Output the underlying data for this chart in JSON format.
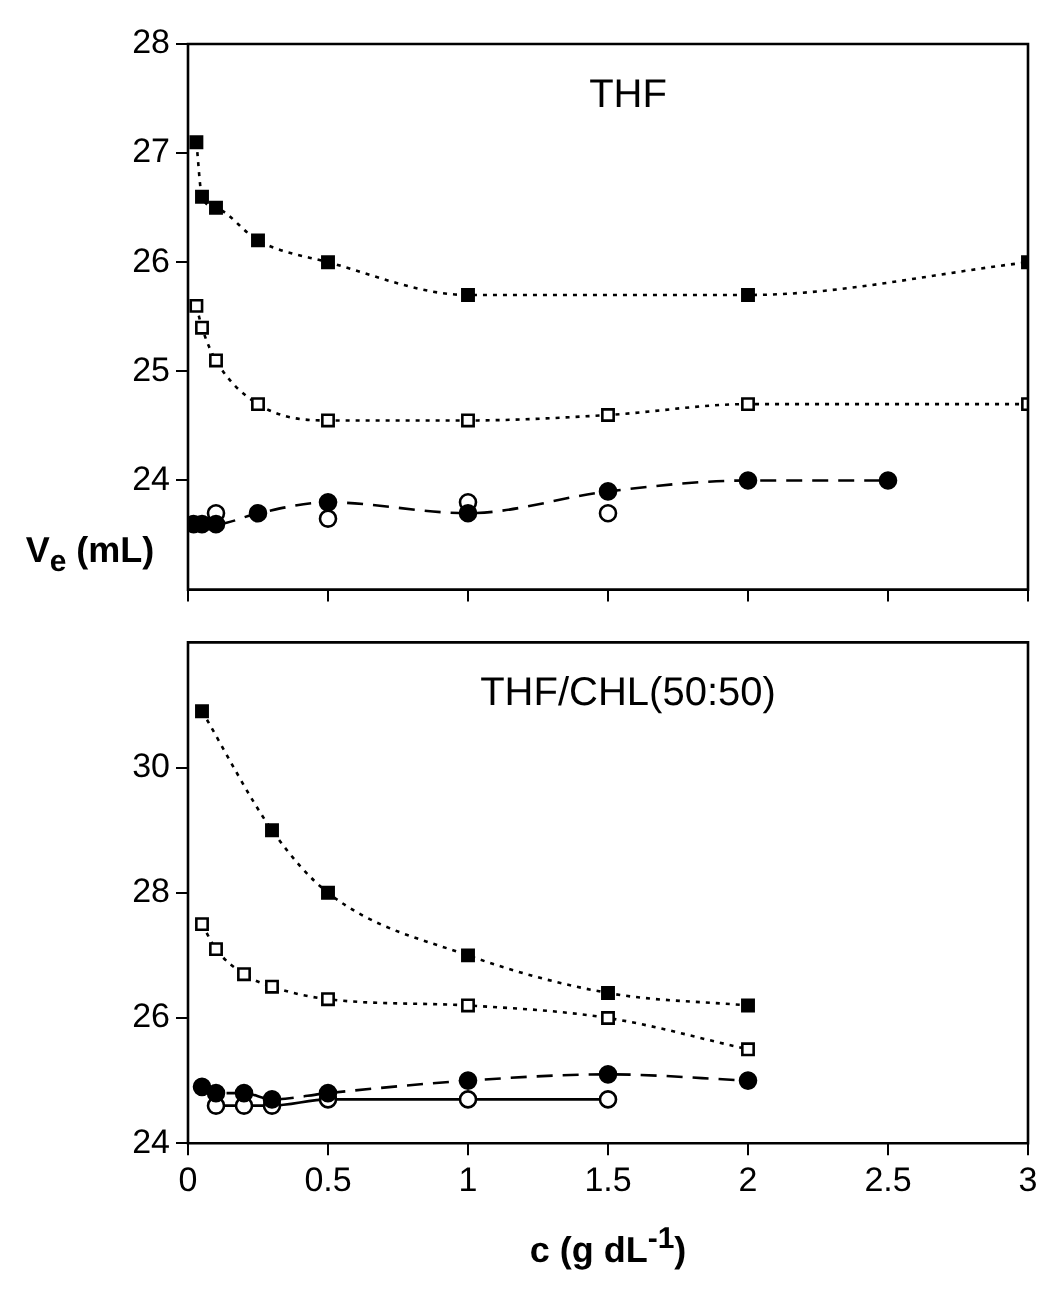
{
  "chart_data": [
    {
      "type": "line",
      "title": "THF",
      "ylabel": "V$_{e}$ (mL)",
      "xlim": [
        0,
        3
      ],
      "xticks": [
        0,
        0.5,
        1,
        1.5,
        2,
        2.5,
        3
      ],
      "ylim": [
        23,
        28
      ],
      "yticks": [
        24,
        25,
        26,
        27,
        28
      ],
      "tick_labels": "y",
      "grid": false,
      "legend": false,
      "series": [
        {
          "type": "line",
          "color": "#000000",
          "marker": "square",
          "line_style": "dotted",
          "x": [
            0.03,
            0.05,
            0.1,
            0.25,
            0.5,
            1,
            2,
            3
          ],
          "values": [
            27.1,
            26.6,
            26.5,
            26.2,
            26.0,
            25.7,
            25.7,
            26.0
          ]
        },
        {
          "type": "line",
          "color": "#ffffff",
          "marker": "square",
          "line_style": "dotted",
          "x": [
            0.03,
            0.05,
            0.1,
            0.25,
            0.5,
            1,
            1.5,
            2,
            3
          ],
          "values": [
            25.6,
            25.4,
            25.1,
            24.7,
            24.55,
            24.55,
            24.6,
            24.7,
            24.7
          ]
        },
        {
          "type": "line",
          "color": "#000000",
          "marker": "circle",
          "line_style": "dashed",
          "x": [
            0.02,
            0.05,
            0.1,
            0.25,
            0.5,
            1,
            1.5,
            2,
            2.5
          ],
          "values": [
            23.6,
            23.6,
            23.6,
            23.7,
            23.8,
            23.7,
            23.9,
            24.0,
            24.0
          ]
        },
        {
          "type": "scatter",
          "color": "#ffffff",
          "marker": "circle",
          "x": [
            0.1,
            0.5,
            1,
            1.5
          ],
          "values": [
            23.7,
            23.65,
            23.8,
            23.7
          ]
        }
      ]
    },
    {
      "type": "line",
      "title": "THF/CHL(50:50)",
      "xlabel": "c (g dL$^{-1}$)",
      "xlim": [
        0,
        3
      ],
      "xticks": [
        0,
        0.5,
        1,
        1.5,
        2,
        2.5,
        3
      ],
      "ylim": [
        24,
        32
      ],
      "yticks": [
        24,
        26,
        28,
        30
      ],
      "grid": false,
      "legend": false,
      "series": [
        {
          "type": "line",
          "color": "#000000",
          "marker": "square",
          "line_style": "dotted",
          "x": [
            0.05,
            0.3,
            0.5,
            1,
            1.5,
            2
          ],
          "values": [
            30.9,
            29.0,
            28.0,
            27.0,
            26.4,
            26.2
          ]
        },
        {
          "type": "line",
          "color": "#ffffff",
          "marker": "square",
          "line_style": "dotted",
          "x": [
            0.05,
            0.1,
            0.2,
            0.3,
            0.5,
            1,
            1.5,
            2
          ],
          "values": [
            27.5,
            27.1,
            26.7,
            26.5,
            26.3,
            26.2,
            26.0,
            25.5
          ]
        },
        {
          "type": "line",
          "color": "#000000",
          "marker": "circle",
          "line_style": "dashed",
          "x": [
            0.05,
            0.1,
            0.2,
            0.3,
            0.5,
            1,
            1.5,
            2
          ],
          "values": [
            24.9,
            24.8,
            24.8,
            24.7,
            24.8,
            25.0,
            25.1,
            25.0
          ]
        },
        {
          "type": "line",
          "color": "#ffffff",
          "marker": "circle",
          "line_style": "solid",
          "x": [
            0.1,
            0.2,
            0.3,
            0.5,
            1,
            1.5
          ],
          "values": [
            24.6,
            24.6,
            24.6,
            24.7,
            24.7,
            24.7
          ]
        }
      ]
    }
  ]
}
